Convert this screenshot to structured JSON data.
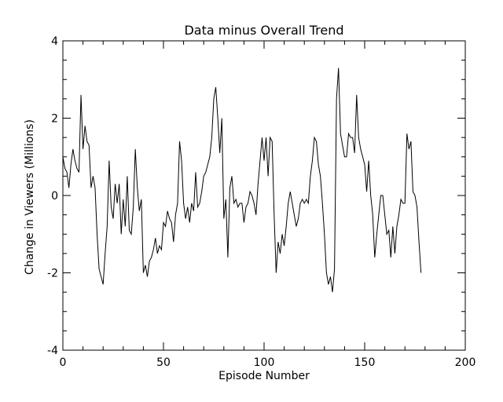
{
  "chart_data": {
    "type": "line",
    "title": "Data minus Overall Trend",
    "xlabel": "Episode Number",
    "ylabel": "Change in Viewers (Millions)",
    "xlim": [
      0,
      200
    ],
    "ylim": [
      -4,
      4
    ],
    "x_ticks": [
      0,
      50,
      100,
      150,
      200
    ],
    "x_tick_labels": [
      "0",
      "50",
      "100",
      "150",
      "200"
    ],
    "y_ticks": [
      -4,
      -2,
      0,
      2,
      4
    ],
    "y_tick_labels": [
      "-4",
      "-2",
      "0",
      "2",
      "4"
    ],
    "grid": false,
    "series": [
      {
        "color": "#000000",
        "points": [
          [
            0,
            1.0
          ],
          [
            1,
            0.7
          ],
          [
            2,
            0.6
          ],
          [
            3,
            0.2
          ],
          [
            4,
            0.8
          ],
          [
            5,
            1.2
          ],
          [
            6,
            0.9
          ],
          [
            7,
            0.7
          ],
          [
            8,
            0.6
          ],
          [
            9,
            2.6
          ],
          [
            10,
            1.2
          ],
          [
            11,
            1.8
          ],
          [
            12,
            1.4
          ],
          [
            13,
            1.3
          ],
          [
            14,
            0.2
          ],
          [
            15,
            0.5
          ],
          [
            16,
            0.2
          ],
          [
            17,
            -1.0
          ],
          [
            18,
            -1.9
          ],
          [
            19,
            -2.1
          ],
          [
            20,
            -2.3
          ],
          [
            21,
            -1.5
          ],
          [
            22,
            -0.8
          ],
          [
            23,
            0.9
          ],
          [
            24,
            -0.3
          ],
          [
            25,
            -0.6
          ],
          [
            26,
            0.3
          ],
          [
            27,
            -0.2
          ],
          [
            28,
            0.3
          ],
          [
            29,
            -1.0
          ],
          [
            30,
            -0.1
          ],
          [
            31,
            -0.8
          ],
          [
            32,
            0.5
          ],
          [
            33,
            -0.9
          ],
          [
            34,
            -1.0
          ],
          [
            35,
            -0.3
          ],
          [
            36,
            1.2
          ],
          [
            37,
            0.2
          ],
          [
            38,
            -0.4
          ],
          [
            39,
            -0.1
          ],
          [
            40,
            -2.0
          ],
          [
            41,
            -1.8
          ],
          [
            42,
            -2.1
          ],
          [
            43,
            -1.7
          ],
          [
            44,
            -1.6
          ],
          [
            45,
            -1.4
          ],
          [
            46,
            -1.1
          ],
          [
            47,
            -1.5
          ],
          [
            48,
            -1.3
          ],
          [
            49,
            -1.4
          ],
          [
            50,
            -0.7
          ],
          [
            51,
            -0.8
          ],
          [
            52,
            -0.4
          ],
          [
            53,
            -0.6
          ],
          [
            54,
            -0.7
          ],
          [
            55,
            -1.2
          ],
          [
            56,
            -0.5
          ],
          [
            57,
            -0.2
          ],
          [
            58,
            1.4
          ],
          [
            59,
            0.9
          ],
          [
            60,
            -0.2
          ],
          [
            61,
            -0.6
          ],
          [
            62,
            -0.3
          ],
          [
            63,
            -0.7
          ],
          [
            64,
            -0.2
          ],
          [
            65,
            -0.4
          ],
          [
            66,
            0.6
          ],
          [
            67,
            -0.3
          ],
          [
            68,
            -0.2
          ],
          [
            69,
            0.1
          ],
          [
            70,
            0.5
          ],
          [
            71,
            0.6
          ],
          [
            72,
            0.8
          ],
          [
            73,
            1.0
          ],
          [
            74,
            1.5
          ],
          [
            75,
            2.5
          ],
          [
            76,
            2.8
          ],
          [
            77,
            2.0
          ],
          [
            78,
            1.1
          ],
          [
            79,
            2.0
          ],
          [
            80,
            -0.6
          ],
          [
            81,
            -0.1
          ],
          [
            82,
            -1.6
          ],
          [
            83,
            0.2
          ],
          [
            84,
            0.5
          ],
          [
            85,
            -0.2
          ],
          [
            86,
            -0.1
          ],
          [
            87,
            -0.3
          ],
          [
            88,
            -0.2
          ],
          [
            89,
            -0.2
          ],
          [
            90,
            -0.7
          ],
          [
            91,
            -0.3
          ],
          [
            92,
            -0.2
          ],
          [
            93,
            0.1
          ],
          [
            94,
            0.0
          ],
          [
            95,
            -0.2
          ],
          [
            96,
            -0.5
          ],
          [
            97,
            0.3
          ],
          [
            98,
            0.9
          ],
          [
            99,
            1.5
          ],
          [
            100,
            0.9
          ],
          [
            101,
            1.5
          ],
          [
            102,
            0.5
          ],
          [
            103,
            1.5
          ],
          [
            104,
            1.4
          ],
          [
            105,
            -0.5
          ],
          [
            106,
            -2.0
          ],
          [
            107,
            -1.2
          ],
          [
            108,
            -1.5
          ],
          [
            109,
            -1.0
          ],
          [
            110,
            -1.3
          ],
          [
            111,
            -0.8
          ],
          [
            112,
            -0.2
          ],
          [
            113,
            0.1
          ],
          [
            114,
            -0.2
          ],
          [
            115,
            -0.5
          ],
          [
            116,
            -0.8
          ],
          [
            117,
            -0.6
          ],
          [
            118,
            -0.2
          ],
          [
            119,
            -0.1
          ],
          [
            120,
            -0.2
          ],
          [
            121,
            -0.1
          ],
          [
            122,
            -0.2
          ],
          [
            123,
            0.5
          ],
          [
            124,
            0.9
          ],
          [
            125,
            1.5
          ],
          [
            126,
            1.4
          ],
          [
            127,
            0.8
          ],
          [
            128,
            0.5
          ],
          [
            129,
            -0.2
          ],
          [
            130,
            -1.0
          ],
          [
            131,
            -2.0
          ],
          [
            132,
            -2.3
          ],
          [
            133,
            -2.1
          ],
          [
            134,
            -2.5
          ],
          [
            135,
            -1.9
          ],
          [
            136,
            2.5
          ],
          [
            137,
            3.3
          ],
          [
            138,
            1.6
          ],
          [
            139,
            1.3
          ],
          [
            140,
            1.0
          ],
          [
            141,
            1.0
          ],
          [
            142,
            1.6
          ],
          [
            143,
            1.5
          ],
          [
            144,
            1.5
          ],
          [
            145,
            1.1
          ],
          [
            146,
            2.6
          ],
          [
            147,
            1.5
          ],
          [
            148,
            1.2
          ],
          [
            149,
            1.0
          ],
          [
            150,
            0.8
          ],
          [
            151,
            0.1
          ],
          [
            152,
            0.9
          ],
          [
            153,
            0.0
          ],
          [
            154,
            -0.5
          ],
          [
            155,
            -1.6
          ],
          [
            156,
            -1.0
          ],
          [
            157,
            -0.5
          ],
          [
            158,
            0.0
          ],
          [
            159,
            0.0
          ],
          [
            160,
            -0.5
          ],
          [
            161,
            -1.0
          ],
          [
            162,
            -0.9
          ],
          [
            163,
            -1.6
          ],
          [
            164,
            -0.8
          ],
          [
            165,
            -1.5
          ],
          [
            166,
            -0.8
          ],
          [
            167,
            -0.5
          ],
          [
            168,
            -0.1
          ],
          [
            169,
            -0.2
          ],
          [
            170,
            -0.2
          ],
          [
            171,
            1.6
          ],
          [
            172,
            1.2
          ],
          [
            173,
            1.4
          ],
          [
            174,
            0.1
          ],
          [
            175,
            0.0
          ],
          [
            176,
            -0.3
          ],
          [
            177,
            -1.2
          ],
          [
            178,
            -2.0
          ]
        ]
      }
    ]
  }
}
